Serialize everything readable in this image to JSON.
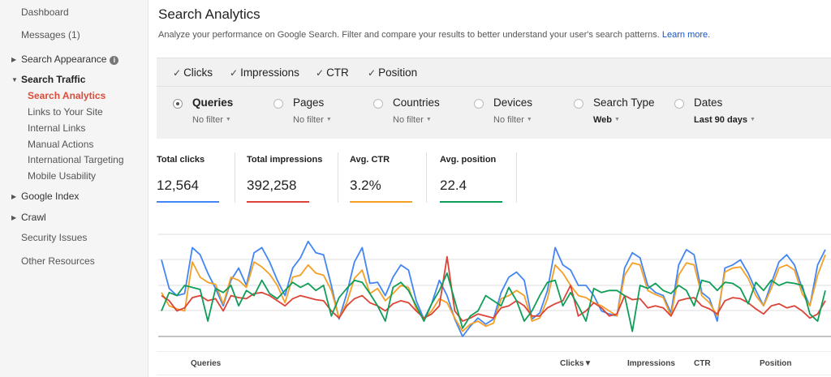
{
  "sidebar": {
    "dashboard": "Dashboard",
    "messages": "Messages (1)",
    "search_appearance": "Search Appearance",
    "info_badge": "i",
    "search_traffic": "Search Traffic",
    "search_traffic_items": [
      "Search Analytics",
      "Links to Your Site",
      "Internal Links",
      "Manual Actions",
      "International Targeting",
      "Mobile Usability"
    ],
    "google_index": "Google Index",
    "crawl": "Crawl",
    "security_issues": "Security Issues",
    "other_resources": "Other Resources"
  },
  "header": {
    "title": "Search Analytics",
    "subtitle": "Analyze your performance on Google Search. Filter and compare your results to better understand your user's search patterns.",
    "learn_more": "Learn more."
  },
  "metrics": {
    "check_glyph": "✓",
    "labels": [
      "Clicks",
      "Impressions",
      "CTR",
      "Position"
    ],
    "checked": [
      true,
      true,
      true,
      true
    ]
  },
  "filters": {
    "groups": [
      {
        "label": "Queries",
        "sub": "No filter",
        "selected": true
      },
      {
        "label": "Pages",
        "sub": "No filter",
        "selected": false
      },
      {
        "label": "Countries",
        "sub": "No filter",
        "selected": false
      },
      {
        "label": "Devices",
        "sub": "No filter",
        "selected": false
      },
      {
        "label": "Search Type",
        "sub": "Web",
        "selected": false
      },
      {
        "label": "Dates",
        "sub": "Last 90 days",
        "selected": false
      }
    ],
    "caret": "▼"
  },
  "totals": [
    {
      "label": "Total clicks",
      "value": "12,564",
      "color": "#4285f4"
    },
    {
      "label": "Total impressions",
      "value": "392,258",
      "color": "#db4437"
    },
    {
      "label": "Avg. CTR",
      "value": "3.2%",
      "color": "#f4a025"
    },
    {
      "label": "Avg. position",
      "value": "22.4",
      "color": "#0f9d58"
    }
  ],
  "chart_data": {
    "type": "line",
    "title": "",
    "xlabel": "",
    "ylabel": "",
    "ylim": [
      0,
      1
    ],
    "grid": true,
    "series": [
      {
        "color": "#4285f4",
        "values": [
          0.75,
          0.47,
          0.4,
          0.42,
          0.87,
          0.8,
          0.62,
          0.47,
          0.3,
          0.55,
          0.67,
          0.5,
          0.82,
          0.87,
          0.73,
          0.55,
          0.4,
          0.67,
          0.77,
          0.93,
          0.82,
          0.8,
          0.5,
          0.17,
          0.42,
          0.73,
          0.87,
          0.52,
          0.53,
          0.4,
          0.58,
          0.7,
          0.65,
          0.35,
          0.17,
          0.32,
          0.55,
          0.4,
          0.17,
          0.0,
          0.1,
          0.18,
          0.12,
          0.17,
          0.43,
          0.58,
          0.63,
          0.55,
          0.17,
          0.23,
          0.45,
          0.87,
          0.7,
          0.65,
          0.5,
          0.5,
          0.4,
          0.25,
          0.22,
          0.2,
          0.67,
          0.82,
          0.77,
          0.5,
          0.43,
          0.4,
          0.23,
          0.7,
          0.85,
          0.8,
          0.43,
          0.37,
          0.15,
          0.67,
          0.7,
          0.75,
          0.62,
          0.45,
          0.3,
          0.52,
          0.73,
          0.8,
          0.7,
          0.47,
          0.3,
          0.7,
          0.85
        ]
      },
      {
        "color": "#f4a025",
        "values": [
          0.43,
          0.3,
          0.27,
          0.25,
          0.73,
          0.58,
          0.53,
          0.51,
          0.32,
          0.58,
          0.55,
          0.48,
          0.73,
          0.68,
          0.61,
          0.5,
          0.33,
          0.58,
          0.6,
          0.7,
          0.62,
          0.6,
          0.45,
          0.18,
          0.33,
          0.57,
          0.65,
          0.42,
          0.47,
          0.35,
          0.42,
          0.5,
          0.48,
          0.27,
          0.17,
          0.25,
          0.37,
          0.33,
          0.18,
          0.05,
          0.12,
          0.15,
          0.1,
          0.13,
          0.37,
          0.4,
          0.45,
          0.4,
          0.15,
          0.18,
          0.37,
          0.7,
          0.62,
          0.5,
          0.4,
          0.38,
          0.33,
          0.3,
          0.25,
          0.2,
          0.6,
          0.72,
          0.7,
          0.45,
          0.41,
          0.38,
          0.2,
          0.6,
          0.72,
          0.7,
          0.4,
          0.33,
          0.2,
          0.63,
          0.67,
          0.68,
          0.57,
          0.4,
          0.3,
          0.47,
          0.67,
          0.7,
          0.65,
          0.42,
          0.3,
          0.6,
          0.8
        ]
      },
      {
        "color": "#db4437",
        "values": [
          0.4,
          0.35,
          0.25,
          0.28,
          0.38,
          0.4,
          0.35,
          0.37,
          0.25,
          0.4,
          0.38,
          0.37,
          0.42,
          0.43,
          0.4,
          0.35,
          0.3,
          0.37,
          0.4,
          0.38,
          0.36,
          0.35,
          0.25,
          0.18,
          0.3,
          0.37,
          0.4,
          0.33,
          0.3,
          0.25,
          0.32,
          0.35,
          0.33,
          0.25,
          0.18,
          0.22,
          0.3,
          0.78,
          0.25,
          0.15,
          0.18,
          0.22,
          0.2,
          0.18,
          0.28,
          0.3,
          0.35,
          0.3,
          0.2,
          0.2,
          0.28,
          0.32,
          0.35,
          0.5,
          0.2,
          0.25,
          0.33,
          0.28,
          0.2,
          0.22,
          0.4,
          0.36,
          0.37,
          0.28,
          0.3,
          0.28,
          0.2,
          0.35,
          0.37,
          0.38,
          0.3,
          0.27,
          0.22,
          0.35,
          0.38,
          0.37,
          0.33,
          0.27,
          0.22,
          0.3,
          0.32,
          0.28,
          0.3,
          0.25,
          0.18,
          0.22,
          0.35
        ]
      },
      {
        "color": "#0f9d58",
        "values": [
          0.25,
          0.43,
          0.4,
          0.5,
          0.48,
          0.46,
          0.15,
          0.47,
          0.43,
          0.5,
          0.3,
          0.45,
          0.4,
          0.55,
          0.42,
          0.37,
          0.45,
          0.53,
          0.48,
          0.52,
          0.45,
          0.5,
          0.2,
          0.38,
          0.47,
          0.55,
          0.53,
          0.42,
          0.3,
          0.15,
          0.48,
          0.53,
          0.45,
          0.3,
          0.15,
          0.32,
          0.45,
          0.62,
          0.35,
          0.08,
          0.2,
          0.25,
          0.4,
          0.35,
          0.3,
          0.48,
          0.35,
          0.15,
          0.25,
          0.4,
          0.53,
          0.55,
          0.3,
          0.43,
          0.3,
          0.15,
          0.47,
          0.43,
          0.45,
          0.45,
          0.4,
          0.05,
          0.5,
          0.47,
          0.52,
          0.45,
          0.42,
          0.5,
          0.45,
          0.3,
          0.55,
          0.53,
          0.45,
          0.53,
          0.52,
          0.47,
          0.32,
          0.53,
          0.45,
          0.55,
          0.5,
          0.53,
          0.52,
          0.5,
          0.22,
          0.15,
          0.45
        ]
      }
    ]
  },
  "table": {
    "columns": [
      "Queries",
      "Clicks▼",
      "Impressions",
      "CTR",
      "Position"
    ]
  }
}
